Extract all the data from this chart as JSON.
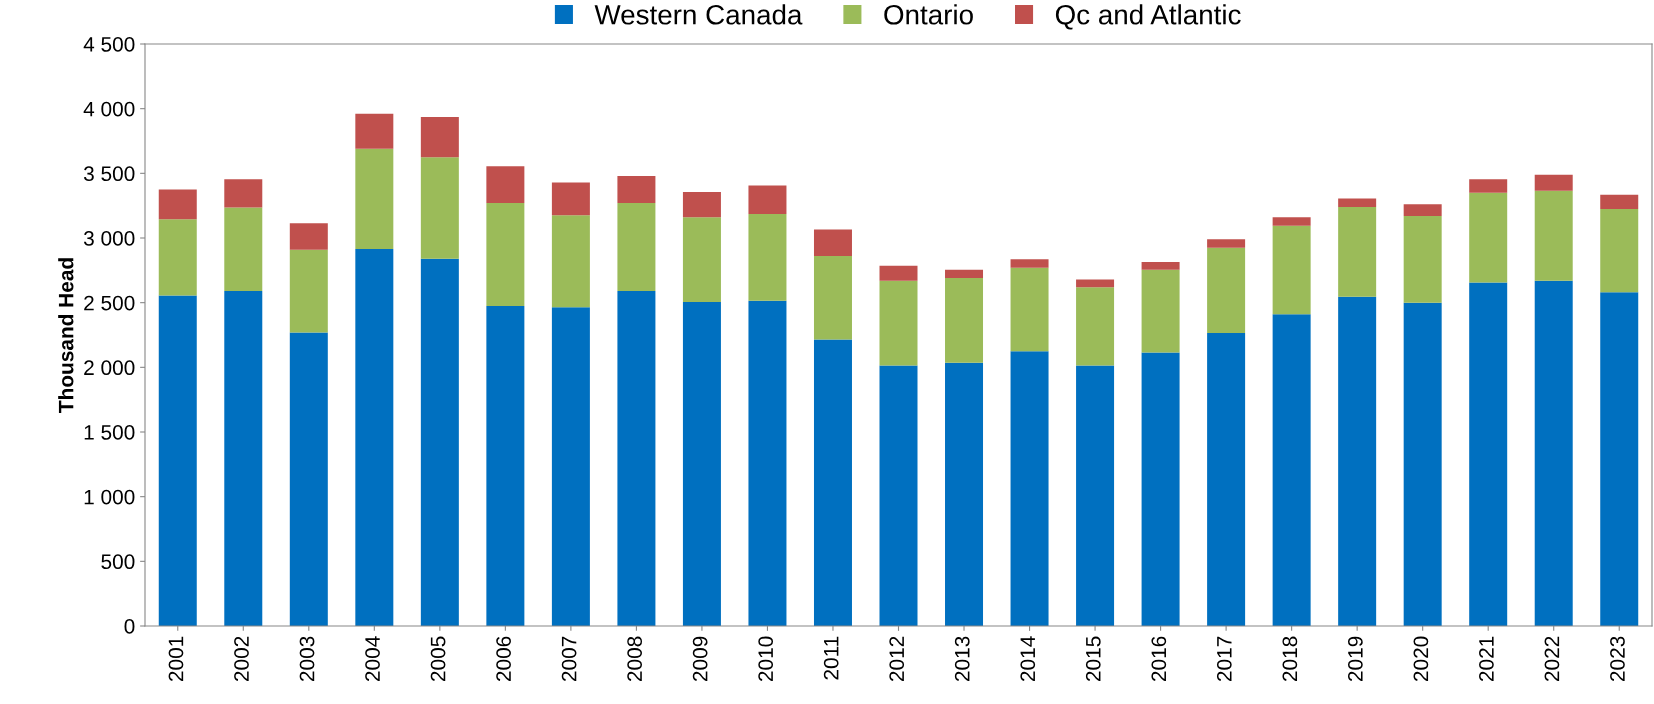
{
  "chart_data": {
    "type": "bar",
    "stacked": true,
    "ylabel": "Thousand Head",
    "categories": [
      "2001",
      "2002",
      "2003",
      "2004",
      "2005",
      "2006",
      "2007",
      "2008",
      "2009",
      "2010",
      "2011",
      "2012",
      "2013",
      "2014",
      "2015",
      "2016",
      "2017",
      "2018",
      "2019",
      "2020",
      "2021",
      "2022",
      "2023"
    ],
    "series": [
      {
        "name": "Western Canada",
        "color": "#0070c0",
        "values": [
          2555,
          2590,
          2270,
          2915,
          2840,
          2475,
          2465,
          2590,
          2505,
          2515,
          2215,
          2015,
          2035,
          2125,
          2015,
          2115,
          2265,
          2410,
          2545,
          2500,
          2655,
          2670,
          2580
        ]
      },
      {
        "name": "Ontario",
        "color": "#9bbb59",
        "values": [
          590,
          645,
          640,
          775,
          785,
          795,
          710,
          680,
          655,
          670,
          645,
          655,
          655,
          645,
          605,
          640,
          660,
          685,
          695,
          670,
          695,
          695,
          645
        ]
      },
      {
        "name": "Qc and Atlantic",
        "color": "#c0504d",
        "values": [
          230,
          220,
          205,
          270,
          310,
          285,
          255,
          210,
          195,
          220,
          205,
          115,
          65,
          65,
          60,
          60,
          65,
          65,
          65,
          90,
          105,
          125,
          110
        ]
      }
    ],
    "ylim": [
      0,
      4500
    ],
    "yticks": [
      0,
      500,
      {
        "value": 1000,
        "label": "1 000"
      },
      {
        "value": 1500,
        "label": "1 500"
      },
      {
        "value": 2000,
        "label": "2 000"
      },
      {
        "value": 2500,
        "label": "2 500"
      },
      {
        "value": 3000,
        "label": "3 000"
      },
      {
        "value": 3500,
        "label": "3 500"
      },
      {
        "value": 4000,
        "label": "4 000"
      },
      {
        "value": 4500,
        "label": "4 500"
      }
    ],
    "grid": false,
    "legend": "top"
  }
}
